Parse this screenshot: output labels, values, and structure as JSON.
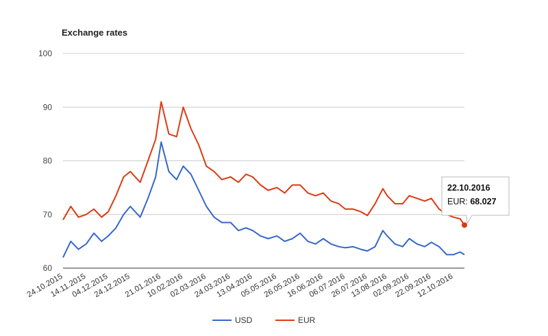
{
  "chart_data": {
    "type": "line",
    "title": "Exchange rates",
    "xlabel": "",
    "ylabel": "",
    "ylim": [
      60,
      100
    ],
    "yticks": [
      60,
      70,
      80,
      90,
      100
    ],
    "grid": true,
    "legend": "bottom",
    "x_tick_labels": [
      "24.10.2015",
      "14.11.2015",
      "04.12.2015",
      "24.12.2015",
      "21.01.2016",
      "10.02.2016",
      "02.03.2016",
      "24.03.2016",
      "13.04.2016",
      "05.05.2016",
      "26.05.2016",
      "16.06.2016",
      "06.07.2016",
      "26.07.2016",
      "13.08.2016",
      "02.09.2016",
      "22.09.2016",
      "12.10.2016"
    ],
    "x": [
      "24.10.2015",
      "31.10.2015",
      "07.11.2015",
      "14.11.2015",
      "21.11.2015",
      "28.11.2015",
      "04.12.2015",
      "11.12.2015",
      "18.12.2015",
      "24.12.2015",
      "02.01.2016",
      "09.01.2016",
      "16.01.2016",
      "21.01.2016",
      "28.01.2016",
      "04.02.2016",
      "10.02.2016",
      "17.02.2016",
      "24.02.2016",
      "02.03.2016",
      "09.03.2016",
      "16.03.2016",
      "24.03.2016",
      "31.03.2016",
      "07.04.2016",
      "13.04.2016",
      "20.04.2016",
      "27.04.2016",
      "05.05.2016",
      "12.05.2016",
      "19.05.2016",
      "26.05.2016",
      "02.06.2016",
      "09.06.2016",
      "16.06.2016",
      "23.06.2016",
      "30.06.2016",
      "06.07.2016",
      "13.07.2016",
      "20.07.2016",
      "26.07.2016",
      "02.08.2016",
      "09.08.2016",
      "13.08.2016",
      "20.08.2016",
      "27.08.2016",
      "02.09.2016",
      "09.09.2016",
      "16.09.2016",
      "22.09.2016",
      "29.09.2016",
      "06.10.2016",
      "12.10.2016",
      "18.10.2016",
      "22.10.2016"
    ],
    "series": [
      {
        "name": "USD",
        "color": "#3366cc",
        "values": [
          62.0,
          65.0,
          63.5,
          64.5,
          66.5,
          65.0,
          66.0,
          67.5,
          70.0,
          71.5,
          69.5,
          73.0,
          77.0,
          83.5,
          78.0,
          76.5,
          79.0,
          77.5,
          74.5,
          71.5,
          69.5,
          68.5,
          68.5,
          67.0,
          67.5,
          67.0,
          66.0,
          65.5,
          66.0,
          65.0,
          65.5,
          66.5,
          65.0,
          64.5,
          65.5,
          64.5,
          64.0,
          63.8,
          64.0,
          63.5,
          63.2,
          64.0,
          67.0,
          66.0,
          64.5,
          64.0,
          65.5,
          64.5,
          64.0,
          64.8,
          64.0,
          62.5,
          62.5,
          63.0,
          62.5
        ]
      },
      {
        "name": "EUR",
        "color": "#dc3912",
        "values": [
          69.0,
          71.5,
          69.5,
          70.0,
          71.0,
          69.5,
          70.5,
          73.5,
          77.0,
          78.0,
          76.0,
          80.0,
          84.0,
          91.0,
          85.0,
          84.5,
          90.0,
          86.0,
          83.0,
          79.0,
          78.0,
          76.5,
          77.0,
          76.0,
          77.5,
          77.0,
          75.5,
          74.5,
          75.0,
          74.0,
          75.5,
          75.5,
          74.0,
          73.5,
          74.0,
          72.5,
          72.0,
          71.0,
          71.0,
          70.5,
          69.8,
          72.0,
          74.8,
          73.5,
          72.0,
          72.0,
          73.5,
          73.0,
          72.5,
          73.0,
          71.0,
          70.0,
          69.5,
          69.2,
          68.027
        ]
      }
    ],
    "tooltip": {
      "date": "22.10.2016",
      "series_label": "EUR",
      "value": "68.027"
    }
  }
}
